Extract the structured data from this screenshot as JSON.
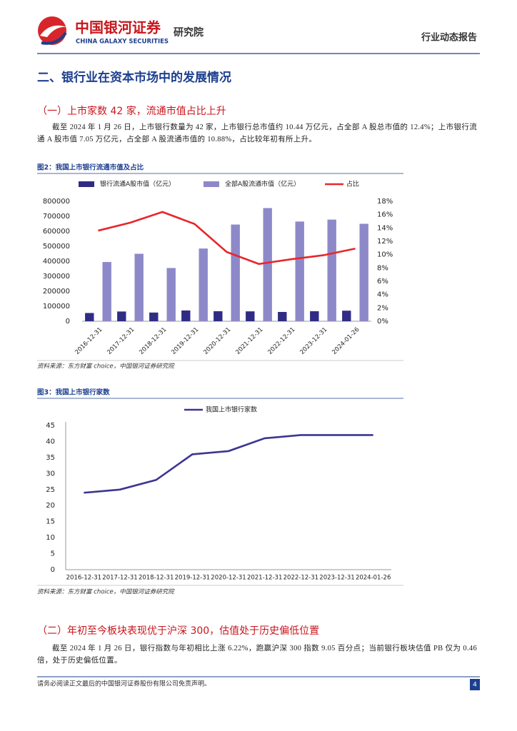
{
  "header": {
    "company": "中国银河证券",
    "company_en": "CHINA GALAXY SECURITIES",
    "unit": "研究院",
    "report_type": "行业动态报告"
  },
  "section_title": "二、银行业在资本市场中的发展情况",
  "subsections": [
    {
      "title": "（一）上市家数 42 家，流通市值占比上升",
      "text": "截至 2024 年 1 月 26 日，上市银行数量为 42 家，上市银行总市值约 10.44 万亿元，占全部 A 股总市值的 12.4%；上市银行流通 A 股市值 7.05 万亿元，占全部 A 股流通市值的 10.88%，占比较年初有所上升。"
    },
    {
      "title": "（二）年初至今板块表现优于沪深 300，估值处于历史偏低位置",
      "text": "截至 2024 年 1 月 26 日，银行指数与年初相比上涨 6.22%，跑赢沪深 300 指数 9.05 百分点；当前银行板块估值 PB 仅为 0.46 倍，处于历史偏低位置。"
    }
  ],
  "chart_data": [
    {
      "type": "bar",
      "title": "图2：我国上市银行流通市值及占比",
      "source": "资料来源：东方财富 choice，中国银河证券研究院",
      "categories": [
        "2016-12-31",
        "2017-12-31",
        "2018-12-31",
        "2019-12-31",
        "2020-12-31",
        "2021-12-31",
        "2022-12-31",
        "2023-12-31",
        "2024-01-26"
      ],
      "series": [
        {
          "name": "银行流通A股市值（亿元）",
          "color": "#302c85",
          "values": [
            55000,
            65000,
            58000,
            72000,
            67000,
            66000,
            62000,
            67000,
            70500
          ]
        },
        {
          "name": "全部A股流通市值（亿元）",
          "color": "#8d89c9",
          "values": [
            395000,
            450000,
            355000,
            485000,
            645000,
            755000,
            665000,
            678000,
            650000
          ]
        },
        {
          "name": "占比",
          "color": "#e8262a",
          "type": "line",
          "axis": "y2",
          "values": [
            13.6,
            14.8,
            16.4,
            14.6,
            10.4,
            8.6,
            9.3,
            9.9,
            10.9
          ]
        }
      ],
      "ylim": [
        0,
        800000
      ],
      "yticks": [
        0,
        100000,
        200000,
        300000,
        400000,
        500000,
        600000,
        700000,
        800000
      ],
      "y2lim": [
        0,
        18
      ],
      "y2ticks": [
        {
          "value": 0,
          "label": "0%"
        },
        {
          "value": 2,
          "label": "2%"
        },
        {
          "value": 4,
          "label": "4%"
        },
        {
          "value": 6,
          "label": "6%"
        },
        {
          "value": 8,
          "label": "8%"
        },
        {
          "value": 10,
          "label": "10%"
        },
        {
          "value": 12,
          "label": "12%"
        },
        {
          "value": 14,
          "label": "14%"
        },
        {
          "value": 16,
          "label": "16%"
        },
        {
          "value": 18,
          "label": "18%"
        }
      ],
      "grid": false
    },
    {
      "type": "line",
      "title": "图3：我国上市银行家数",
      "source": "资料来源：东方财富 choice，中国银河证券研究院",
      "categories": [
        "2016-12-31",
        "2017-12-31",
        "2018-12-31",
        "2019-12-31",
        "2020-12-31",
        "2021-12-31",
        "2022-12-31",
        "2023-12-31",
        "2024-01-26"
      ],
      "series": [
        {
          "name": "我国上市银行家数",
          "color": "#3d3592",
          "values": [
            24,
            25,
            28,
            36,
            37,
            41,
            42,
            42,
            42
          ]
        }
      ],
      "ylim": [
        0,
        45
      ],
      "yticks": [
        0,
        5,
        10,
        15,
        20,
        25,
        30,
        35,
        40,
        45
      ],
      "grid": false
    }
  ],
  "footer": {
    "disclaimer": "请务必阅读正文最后的中国银河证券股份有限公司免责声明。",
    "page": "4"
  }
}
